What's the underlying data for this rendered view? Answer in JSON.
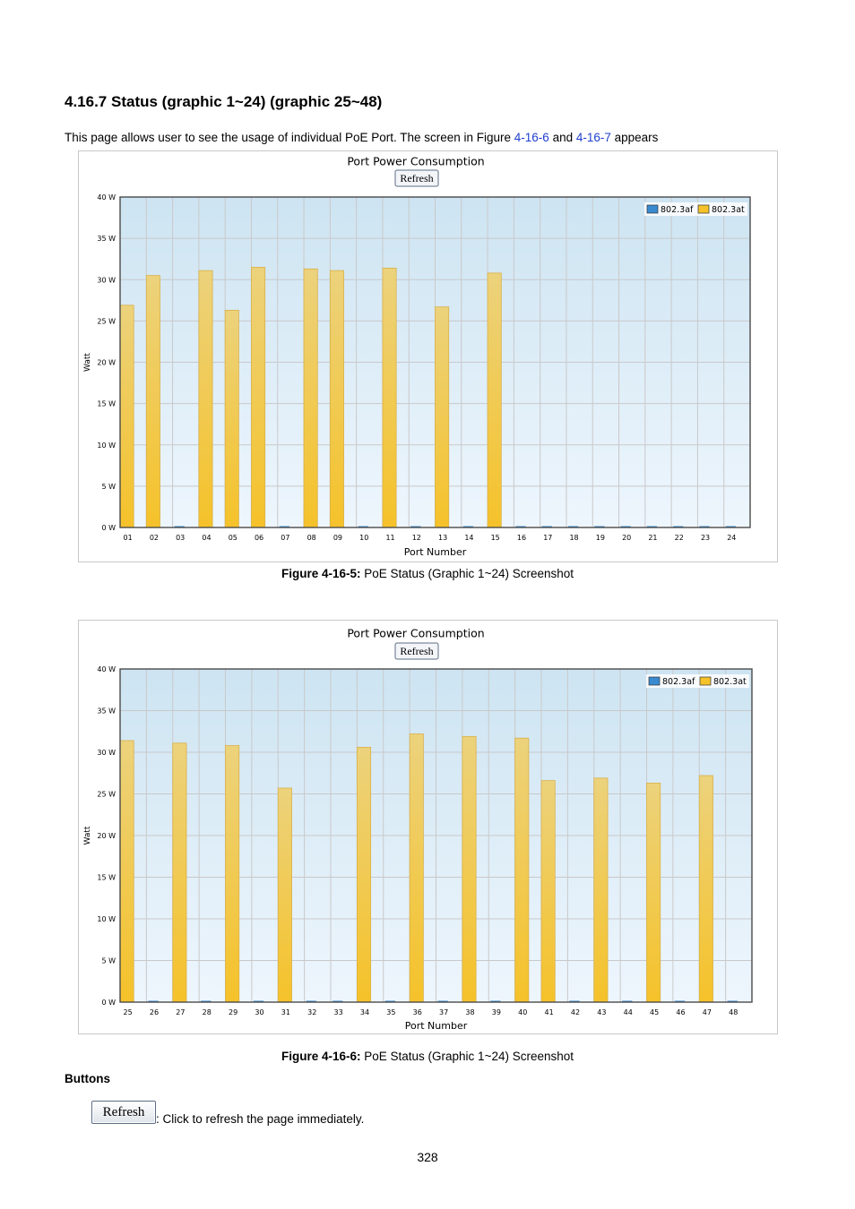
{
  "section": {
    "heading": "4.16.7 Status (graphic 1~24) (graphic 25~48)",
    "intro_pre": "This page allows user to see the usage of individual PoE Port. The screen in Figure ",
    "intro_link1": "4-16-6",
    "intro_mid": " and ",
    "intro_link2": "4-16-7",
    "intro_post": " appears"
  },
  "colors": {
    "bar_802_3at": "#f5c22a",
    "bar_802_3af": "#3a8ad0",
    "plot_top": "#cde4f2",
    "plot_bottom": "#eef6fd",
    "link": "#1f3fcf"
  },
  "figures": [
    {
      "caption_bold": "Figure 4-16-5:",
      "caption_text": " PoE Status (Graphic 1~24) Screenshot"
    },
    {
      "caption_bold": "Figure 4-16-6:",
      "caption_text": " PoE Status (Graphic 1~24) Screenshot"
    }
  ],
  "chart_data": [
    {
      "type": "bar",
      "title": "Port Power Consumption",
      "refresh_label": "Refresh",
      "xlabel": "Port Number",
      "ylabel": "Watt",
      "ylim": [
        0,
        40
      ],
      "yticks": [
        "0 W",
        "5 W",
        "10 W",
        "15 W",
        "20 W",
        "25 W",
        "30 W",
        "35 W",
        "40 W"
      ],
      "grid": true,
      "legend_position": "top-right",
      "legend": [
        "802.3af",
        "802.3at"
      ],
      "categories": [
        "01",
        "02",
        "03",
        "04",
        "05",
        "06",
        "07",
        "08",
        "09",
        "10",
        "11",
        "12",
        "13",
        "14",
        "15",
        "16",
        "17",
        "18",
        "19",
        "20",
        "21",
        "22",
        "23",
        "24"
      ],
      "series": [
        {
          "name": "802.3af",
          "values": [
            0,
            0,
            0,
            0,
            0,
            0,
            0,
            0,
            0,
            0,
            0,
            0,
            0,
            0,
            0,
            0,
            0,
            0,
            0,
            0,
            0,
            0,
            0,
            0
          ]
        },
        {
          "name": "802.3at",
          "values": [
            26.9,
            30.5,
            0,
            31.1,
            26.3,
            31.5,
            0,
            31.3,
            31.1,
            0,
            31.4,
            0,
            26.7,
            0,
            30.8,
            0,
            0,
            0,
            0,
            0,
            0,
            0,
            0,
            0
          ]
        }
      ]
    },
    {
      "type": "bar",
      "title": "Port Power Consumption",
      "refresh_label": "Refresh",
      "xlabel": "Port Number",
      "ylabel": "Watt",
      "ylim": [
        0,
        40
      ],
      "yticks": [
        "0 W",
        "5 W",
        "10 W",
        "15 W",
        "20 W",
        "25 W",
        "30 W",
        "35 W",
        "40 W"
      ],
      "grid": true,
      "legend_position": "top-right",
      "legend": [
        "802.3af",
        "802.3at"
      ],
      "categories": [
        "25",
        "26",
        "27",
        "28",
        "29",
        "30",
        "31",
        "32",
        "33",
        "34",
        "35",
        "36",
        "37",
        "38",
        "39",
        "40",
        "41",
        "42",
        "43",
        "44",
        "45",
        "46",
        "47",
        "48"
      ],
      "series": [
        {
          "name": "802.3af",
          "values": [
            0,
            0,
            0,
            0,
            0,
            0,
            0,
            0,
            0,
            0,
            0,
            0,
            0,
            0,
            0,
            0,
            0,
            0,
            0,
            0,
            0,
            0,
            0,
            0
          ]
        },
        {
          "name": "802.3at",
          "values": [
            31.4,
            0,
            31.1,
            0,
            30.8,
            0,
            25.7,
            0,
            0,
            30.6,
            0,
            32.2,
            0,
            31.9,
            0,
            31.7,
            26.6,
            0,
            26.9,
            0,
            26.3,
            0,
            27.2,
            0
          ]
        }
      ]
    }
  ],
  "buttons": {
    "heading": "Buttons",
    "refresh_label": "Refresh",
    "refresh_desc": ": Click to refresh the page immediately."
  },
  "page_number": "328"
}
